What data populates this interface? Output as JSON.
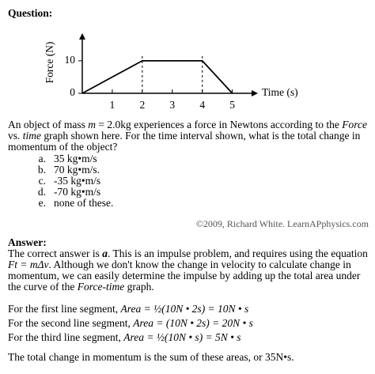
{
  "question": {
    "heading": "Question:",
    "paragraph": [
      "An object of mass ",
      "m",
      " = 2.0kg experiences a force in Newtons according to the ",
      "Force",
      " vs. ",
      "time",
      " graph shown here. For the time interval shown, what is the total change in momentum of the object?"
    ],
    "options": [
      {
        "letter": "a.",
        "text": "35 kg•m/s"
      },
      {
        "letter": "b.",
        "text": "70 kg•m/s."
      },
      {
        "letter": "c.",
        "text": "-35 kg•m/s"
      },
      {
        "letter": "d.",
        "text": "-70 kg•m/s"
      },
      {
        "letter": "e.",
        "text": "none of these."
      }
    ]
  },
  "chart_data": {
    "type": "line",
    "xlabel": "Time (s)",
    "ylabel": "Force (N)",
    "x": [
      0,
      2,
      4,
      5
    ],
    "values": [
      0,
      10,
      10,
      0
    ],
    "color": "#000000",
    "xlim": [
      0,
      5.8
    ],
    "ylim": [
      0,
      18
    ],
    "xticks": [
      1,
      2,
      3,
      4,
      5
    ],
    "yticks": [
      0,
      10
    ]
  },
  "copyright": "©2009, Richard White. LearnAPphysics.com",
  "answer": {
    "heading": "Answer:",
    "paragraph": [
      "The correct answer is ",
      "a",
      ". This is an impulse problem, and requires using the equation ",
      "Ft = mΔv",
      ". Although we don't know the change in velocity to calculate change in momentum, we can easily determine the impulse by adding up the total area under the curve of the ",
      "Force-time",
      " graph."
    ],
    "segments": [
      {
        "label": "For the first line segment, ",
        "math": "Area = ½(10N • 2s) = 10N • s"
      },
      {
        "label": "For the second line segment, ",
        "math": "Area = (10N • 2s) = 20N • s"
      },
      {
        "label": "For the third line segment, ",
        "math": "Area = ½(10N • s) = 5N • s"
      }
    ],
    "conclusion": "The total change in momentum is the sum of these areas, or 35N•s."
  }
}
